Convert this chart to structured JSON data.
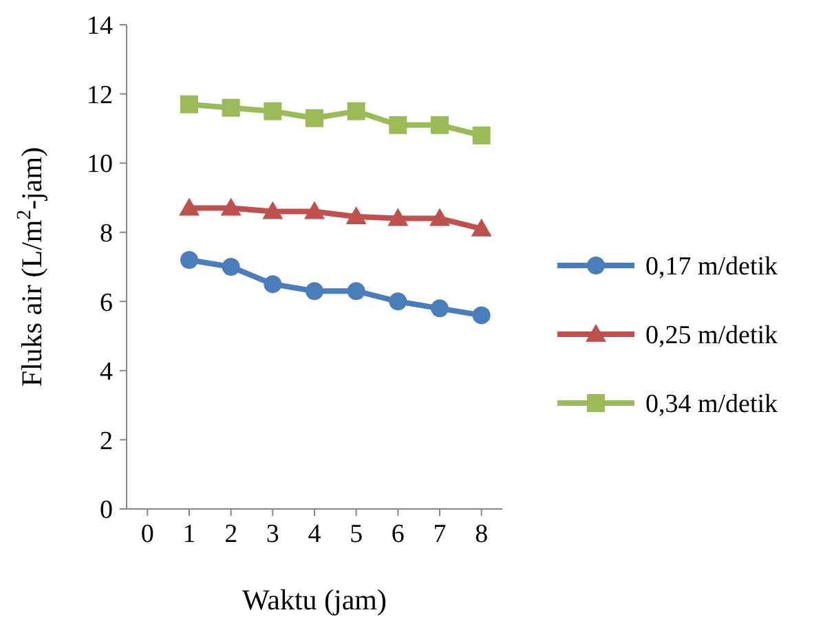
{
  "chart_data": {
    "type": "line",
    "xlabel": "Waktu (jam)",
    "ylabel": "Fluks air (L/m$^{2}$-jam)",
    "x": [
      1,
      2,
      3,
      4,
      5,
      6,
      7,
      8
    ],
    "xlim": [
      -0.5,
      8.5
    ],
    "xticks": [
      0,
      1,
      2,
      3,
      4,
      5,
      6,
      7,
      8
    ],
    "ylim": [
      0,
      14
    ],
    "yticks": [
      0,
      2,
      4,
      6,
      8,
      10,
      12,
      14
    ],
    "grid": false,
    "legend": "right",
    "line_style": "solid",
    "series": [
      {
        "name": "0,17 m/detik",
        "color": "#4a7ebb",
        "marker": "circle",
        "values": [
          7.2,
          7.0,
          6.5,
          6.3,
          6.3,
          6.0,
          5.8,
          5.6
        ]
      },
      {
        "name": "0,25 m/detik",
        "color": "#c0504d",
        "marker": "triangle",
        "values": [
          8.7,
          8.7,
          8.6,
          8.6,
          8.45,
          8.4,
          8.4,
          8.1
        ]
      },
      {
        "name": "0,34 m/detik",
        "color": "#9bbb59",
        "marker": "square",
        "values": [
          11.7,
          11.6,
          11.5,
          11.3,
          11.5,
          11.1,
          11.1,
          10.8
        ]
      }
    ]
  }
}
